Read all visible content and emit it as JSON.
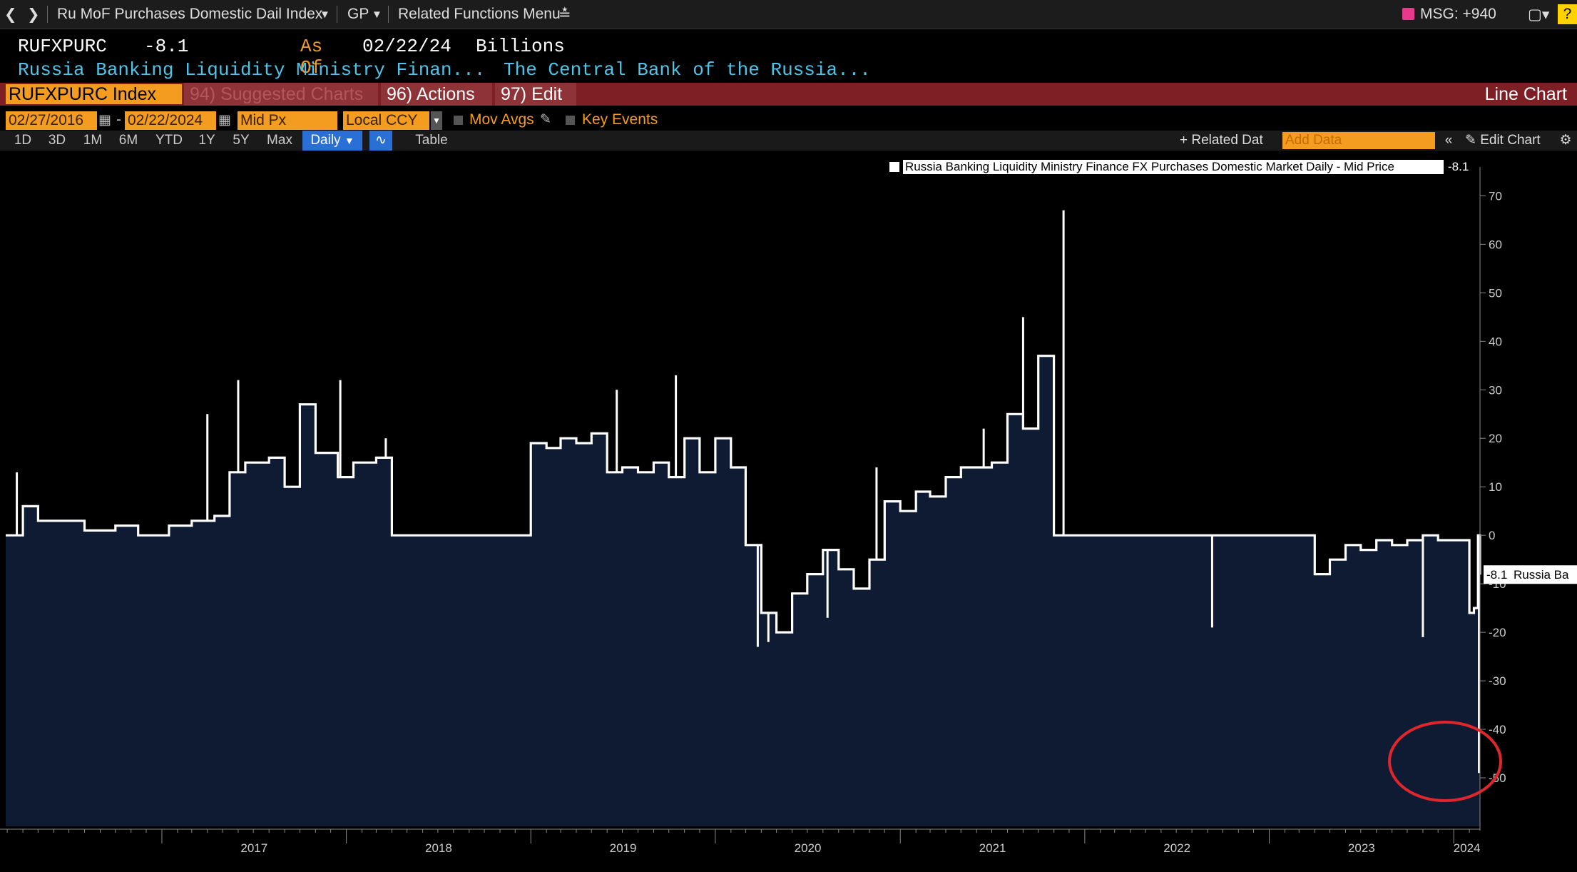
{
  "topbar": {
    "security_menu": "Ru MoF Purchases Domestic Dail Index",
    "gp_menu": "GP",
    "related_menu": "Related Functions Menu",
    "msg": "MSG: +940",
    "help": "?"
  },
  "header": {
    "ticker": "RUFXPURC",
    "value": "-8.1",
    "as_of_label": "As Of",
    "as_of_date": "02/22/24",
    "units": "Billions",
    "desc": "Russia Banking Liquidity Ministry Finan...",
    "source": "The Central Bank of the Russia..."
  },
  "redbar": {
    "security": "RUFXPURC Index",
    "suggested": "94) Suggested Charts",
    "actions": "96) Actions",
    "edit": "97) Edit",
    "chart_type": "Line Chart"
  },
  "controls": {
    "start_date": "02/27/2016",
    "end_date": "02/22/2024",
    "price_field": "Mid Px",
    "currency": "Local CCY",
    "mov_avgs": "Mov Avgs",
    "key_events": "Key Events"
  },
  "periods": {
    "items": [
      "1D",
      "3D",
      "1M",
      "6M",
      "YTD",
      "1Y",
      "5Y",
      "Max"
    ],
    "frequency": "Daily",
    "table": "Table",
    "related": "Related Dat",
    "add_data_placeholder": "Add Data",
    "edit_chart": "Edit Chart"
  },
  "chart_data": {
    "type": "area",
    "series": [
      {
        "name": "Russia Banking Liquidity Ministry Finance FX Purchases Domestic Market Daily - Mid Price",
        "last_value": "-8.1",
        "last_label": "Russia Ba",
        "x": [
          "2016-02-27",
          "2016-04-01",
          "2016-05-01",
          "2016-06-15",
          "2016-08-01",
          "2016-10-01",
          "2016-11-15",
          "2017-01-15",
          "2017-03-01",
          "2017-04-15",
          "2017-05-15",
          "2017-06-15",
          "2017-08-01",
          "2017-09-01",
          "2017-10-01",
          "2017-11-01",
          "2017-12-15",
          "2018-01-15",
          "2018-03-01",
          "2018-04-01",
          "2018-04-15",
          "2018-05-15",
          "2018-06-15",
          "2018-08-01",
          "2018-09-01",
          "2018-11-15",
          "2019-01-01",
          "2019-02-01",
          "2019-03-01",
          "2019-04-01",
          "2019-05-01",
          "2019-06-01",
          "2019-07-01",
          "2019-08-01",
          "2019-09-01",
          "2019-10-01",
          "2019-11-01",
          "2019-12-01",
          "2020-01-01",
          "2020-02-01",
          "2020-03-01",
          "2020-04-01",
          "2020-05-01",
          "2020-06-01",
          "2020-07-01",
          "2020-08-01",
          "2020-09-01",
          "2020-10-01",
          "2020-11-01",
          "2020-12-01",
          "2021-01-01",
          "2021-02-01",
          "2021-03-01",
          "2021-04-01",
          "2021-05-01",
          "2021-06-01",
          "2021-07-01",
          "2021-08-01",
          "2021-09-01",
          "2021-10-01",
          "2021-11-01",
          "2021-12-01",
          "2022-01-01",
          "2022-01-14",
          "2022-03-01",
          "2022-06-01",
          "2022-09-01",
          "2022-12-01",
          "2023-01-01",
          "2023-02-01",
          "2023-03-01",
          "2023-04-01",
          "2023-05-01",
          "2023-06-01",
          "2023-07-01",
          "2023-08-01",
          "2023-09-01",
          "2023-10-01",
          "2023-11-01",
          "2023-12-01",
          "2024-01-01",
          "2024-01-15",
          "2024-02-01",
          "2024-02-10",
          "2024-02-18",
          "2024-02-22"
        ],
        "y": [
          0,
          6,
          3,
          3,
          1,
          2,
          0,
          2,
          3,
          4,
          13,
          15,
          16,
          10,
          27,
          17,
          12,
          15,
          16,
          0,
          0,
          0,
          0,
          0,
          0,
          0,
          19,
          18,
          20,
          19,
          21,
          13,
          14,
          13,
          15,
          12,
          20,
          13,
          20,
          14,
          -2,
          -16,
          -20,
          -12,
          -8,
          -3,
          -7,
          -11,
          -5,
          7,
          5,
          9,
          8,
          12,
          14,
          14,
          15,
          25,
          22,
          37,
          0,
          0,
          0,
          0,
          0,
          0,
          0,
          0,
          0,
          0,
          0,
          -8,
          -5,
          -2,
          -3,
          -1,
          -2,
          -1,
          0,
          -1,
          -1,
          -1,
          -16,
          -15,
          0,
          -8.1
        ]
      }
    ],
    "spikes": [
      {
        "x": "2016-03-20",
        "y": 13
      },
      {
        "x": "2017-04-01",
        "y": 25
      },
      {
        "x": "2017-06-01",
        "y": 32
      },
      {
        "x": "2017-12-20",
        "y": 32
      },
      {
        "x": "2018-03-20",
        "y": 20
      },
      {
        "x": "2019-06-20",
        "y": 30
      },
      {
        "x": "2019-10-15",
        "y": 33
      },
      {
        "x": "2020-03-25",
        "y": -23
      },
      {
        "x": "2020-04-15",
        "y": -22
      },
      {
        "x": "2020-08-10",
        "y": -17
      },
      {
        "x": "2020-11-15",
        "y": 14
      },
      {
        "x": "2021-06-15",
        "y": 22
      },
      {
        "x": "2021-09-01",
        "y": 45
      },
      {
        "x": "2021-11-20",
        "y": 67
      },
      {
        "x": "2022-09-10",
        "y": -19
      },
      {
        "x": "2023-11-01",
        "y": -21
      },
      {
        "x": "2024-02-20",
        "y": -49
      }
    ],
    "x_ticks": [
      "2017",
      "2018",
      "2019",
      "2020",
      "2021",
      "2022",
      "2023",
      "2024"
    ],
    "y_ticks": [
      70,
      60,
      50,
      40,
      30,
      20,
      10,
      0,
      -10,
      -20,
      -30,
      -40,
      -50
    ],
    "ylim": [
      -60,
      73
    ],
    "xlim": [
      "2016-02-27",
      "2024-02-22"
    ],
    "legend_placement": "top-right",
    "grid": false,
    "colors": {
      "line": "#ffffff",
      "fill": "#0f1b33",
      "annotation": "#e0262d"
    }
  }
}
